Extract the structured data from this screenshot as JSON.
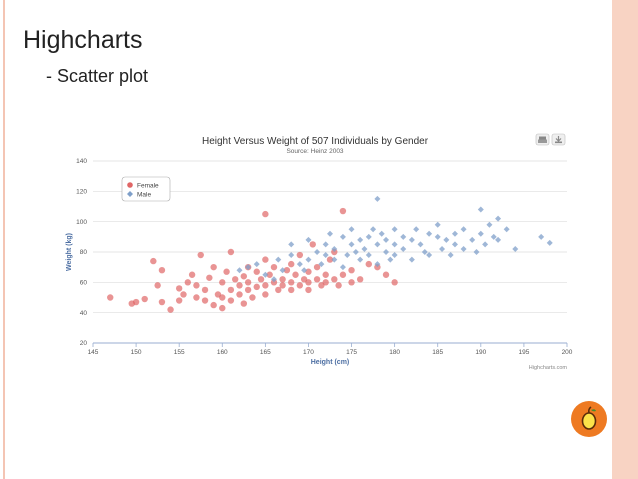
{
  "slide": {
    "title": "Highcharts",
    "bullet": "- Scatter plot"
  },
  "chart_data": {
    "type": "scatter",
    "title": "Height Versus Weight of 507 Individuals by Gender",
    "subtitle": "Source: Heinz 2003",
    "xlabel": "Height (cm)",
    "ylabel": "Weight (kg)",
    "xlim": [
      145,
      200
    ],
    "ylim": [
      20,
      140
    ],
    "xticks": [
      145,
      150,
      155,
      160,
      165,
      170,
      175,
      180,
      185,
      190,
      195,
      200
    ],
    "yticks": [
      20,
      40,
      60,
      80,
      100,
      120,
      140
    ],
    "grid": true,
    "legend": "top-left",
    "credits": "Highcharts.com",
    "series": [
      {
        "name": "Female",
        "color": "#e06666",
        "marker": "circle",
        "points": [
          [
            147,
            50
          ],
          [
            149.5,
            46
          ],
          [
            150,
            47
          ],
          [
            151,
            49
          ],
          [
            152,
            74
          ],
          [
            152.5,
            58
          ],
          [
            153,
            68
          ],
          [
            153,
            47
          ],
          [
            154,
            42
          ],
          [
            155,
            48
          ],
          [
            155,
            56
          ],
          [
            155.5,
            52
          ],
          [
            156,
            60
          ],
          [
            156.5,
            65
          ],
          [
            157,
            50
          ],
          [
            157,
            58
          ],
          [
            157.5,
            78
          ],
          [
            158,
            55
          ],
          [
            158,
            48
          ],
          [
            158.5,
            63
          ],
          [
            159,
            45
          ],
          [
            159,
            70
          ],
          [
            159.5,
            52
          ],
          [
            160,
            60
          ],
          [
            160,
            50
          ],
          [
            160,
            43
          ],
          [
            160.5,
            67
          ],
          [
            161,
            55
          ],
          [
            161,
            48
          ],
          [
            161,
            80
          ],
          [
            161.5,
            62
          ],
          [
            162,
            58
          ],
          [
            162,
            52
          ],
          [
            162.5,
            64
          ],
          [
            162.5,
            46
          ],
          [
            163,
            70
          ],
          [
            163,
            55
          ],
          [
            163,
            60
          ],
          [
            163.5,
            50
          ],
          [
            164,
            57
          ],
          [
            164,
            67
          ],
          [
            164.5,
            62
          ],
          [
            165,
            105
          ],
          [
            165,
            58
          ],
          [
            165,
            75
          ],
          [
            165,
            52
          ],
          [
            165.5,
            65
          ],
          [
            166,
            60
          ],
          [
            166,
            70
          ],
          [
            166.5,
            55
          ],
          [
            167,
            62
          ],
          [
            167,
            58
          ],
          [
            167.5,
            68
          ],
          [
            168,
            72
          ],
          [
            168,
            60
          ],
          [
            168,
            55
          ],
          [
            168.5,
            65
          ],
          [
            169,
            58
          ],
          [
            169,
            78
          ],
          [
            169.5,
            62
          ],
          [
            170,
            60
          ],
          [
            170,
            67
          ],
          [
            170,
            55
          ],
          [
            170.5,
            85
          ],
          [
            171,
            62
          ],
          [
            171,
            70
          ],
          [
            171.5,
            58
          ],
          [
            172,
            65
          ],
          [
            172,
            60
          ],
          [
            172.5,
            75
          ],
          [
            173,
            62
          ],
          [
            173,
            80
          ],
          [
            173.5,
            58
          ],
          [
            174,
            107
          ],
          [
            174,
            65
          ],
          [
            175,
            60
          ],
          [
            175,
            68
          ],
          [
            176,
            62
          ],
          [
            177,
            72
          ],
          [
            178,
            70
          ],
          [
            179,
            65
          ],
          [
            180,
            60
          ]
        ]
      },
      {
        "name": "Male",
        "color": "#7f9fc9",
        "marker": "diamond",
        "points": [
          [
            162,
            68
          ],
          [
            163,
            70
          ],
          [
            164,
            72
          ],
          [
            165,
            65
          ],
          [
            166,
            62
          ],
          [
            166.5,
            75
          ],
          [
            167,
            68
          ],
          [
            168,
            78
          ],
          [
            168,
            85
          ],
          [
            169,
            72
          ],
          [
            169.5,
            68
          ],
          [
            170,
            75
          ],
          [
            170,
            88
          ],
          [
            171,
            80
          ],
          [
            171.5,
            72
          ],
          [
            172,
            85
          ],
          [
            172,
            78
          ],
          [
            172.5,
            92
          ],
          [
            173,
            75
          ],
          [
            173,
            82
          ],
          [
            174,
            70
          ],
          [
            174,
            90
          ],
          [
            174.5,
            78
          ],
          [
            175,
            85
          ],
          [
            175,
            95
          ],
          [
            175.5,
            80
          ],
          [
            176,
            75
          ],
          [
            176,
            88
          ],
          [
            176.5,
            82
          ],
          [
            177,
            90
          ],
          [
            177,
            78
          ],
          [
            177.5,
            95
          ],
          [
            178,
            85
          ],
          [
            178,
            115
          ],
          [
            178,
            72
          ],
          [
            178.5,
            92
          ],
          [
            179,
            80
          ],
          [
            179,
            88
          ],
          [
            179.5,
            75
          ],
          [
            180,
            95
          ],
          [
            180,
            85
          ],
          [
            180,
            78
          ],
          [
            181,
            90
          ],
          [
            181,
            82
          ],
          [
            182,
            88
          ],
          [
            182,
            75
          ],
          [
            182.5,
            95
          ],
          [
            183,
            85
          ],
          [
            183.5,
            80
          ],
          [
            184,
            92
          ],
          [
            184,
            78
          ],
          [
            185,
            90
          ],
          [
            185,
            98
          ],
          [
            185.5,
            82
          ],
          [
            186,
            88
          ],
          [
            186.5,
            78
          ],
          [
            187,
            92
          ],
          [
            187,
            85
          ],
          [
            188,
            95
          ],
          [
            188,
            82
          ],
          [
            189,
            88
          ],
          [
            189.5,
            80
          ],
          [
            190,
            108
          ],
          [
            190,
            92
          ],
          [
            190.5,
            85
          ],
          [
            191,
            98
          ],
          [
            191.5,
            90
          ],
          [
            192,
            102
          ],
          [
            192,
            88
          ],
          [
            193,
            95
          ],
          [
            194,
            82
          ],
          [
            197,
            90
          ],
          [
            198,
            86
          ]
        ]
      }
    ]
  },
  "colors": {
    "logo": "#ee7a22",
    "accent_band": "#f8d3c3",
    "axis_title": "#4d6fa3"
  },
  "icons": {
    "toolbar_print": "print-icon",
    "toolbar_export": "export-icon",
    "logo": "logo-icon"
  }
}
